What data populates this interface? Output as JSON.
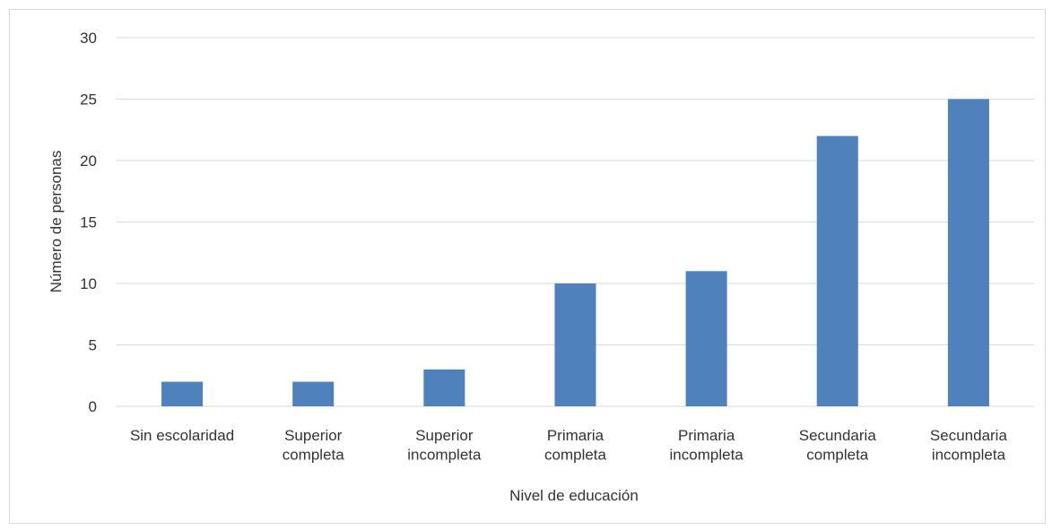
{
  "chart_data": {
    "type": "bar",
    "x_label": "Nivel de educación",
    "y_label": "Número de personas",
    "categories": [
      "Sin escolaridad",
      "Superior\ncompleta",
      "Superior\nincompleta",
      "Primaria\ncompleta",
      "Primaria\nincompleta",
      "Secundaria\ncompleta",
      "Secundaria\nincompleta"
    ],
    "values": [
      2,
      2,
      3,
      10,
      11,
      22,
      25
    ],
    "color": "#4f81bd",
    "ylim": [
      0,
      30
    ],
    "yticks": [
      0,
      5,
      10,
      15,
      20,
      25,
      30
    ],
    "grid": true
  }
}
